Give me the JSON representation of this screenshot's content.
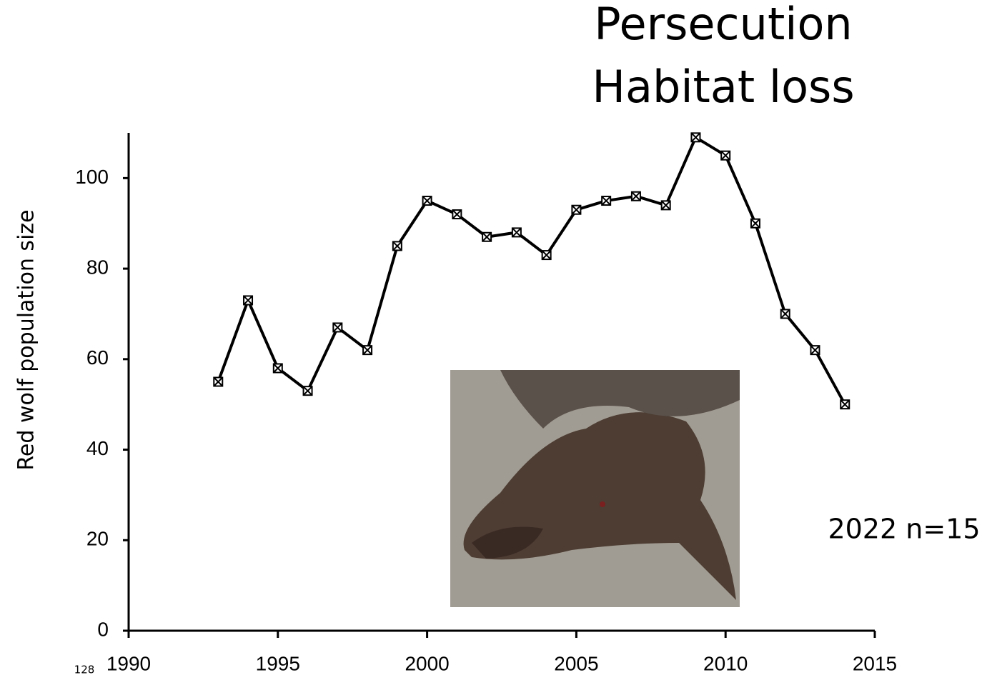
{
  "chart_data": {
    "type": "line",
    "title_lines": [
      "Persecution",
      "Habitat loss"
    ],
    "y_label": "Red wolf population size",
    "annotation": "2022 n=15",
    "slide_number": "128",
    "x": [
      1993,
      1994,
      1995,
      1996,
      1997,
      1998,
      1999,
      2000,
      2001,
      2002,
      2003,
      2004,
      2005,
      2006,
      2007,
      2008,
      2009,
      2010,
      2011,
      2012,
      2013,
      2014
    ],
    "values": [
      55,
      73,
      58,
      53,
      67,
      62,
      85,
      95,
      92,
      87,
      88,
      83,
      93,
      95,
      96,
      94,
      109,
      105,
      90,
      70,
      62,
      50
    ],
    "color": "#000000",
    "xlim": [
      1990,
      2015
    ],
    "xticks": [
      1990,
      1995,
      2000,
      2005,
      2010,
      2015
    ],
    "ylim": [
      0,
      110
    ],
    "yticks": [
      0,
      20,
      40,
      60,
      80,
      100
    ],
    "grid": false
  }
}
